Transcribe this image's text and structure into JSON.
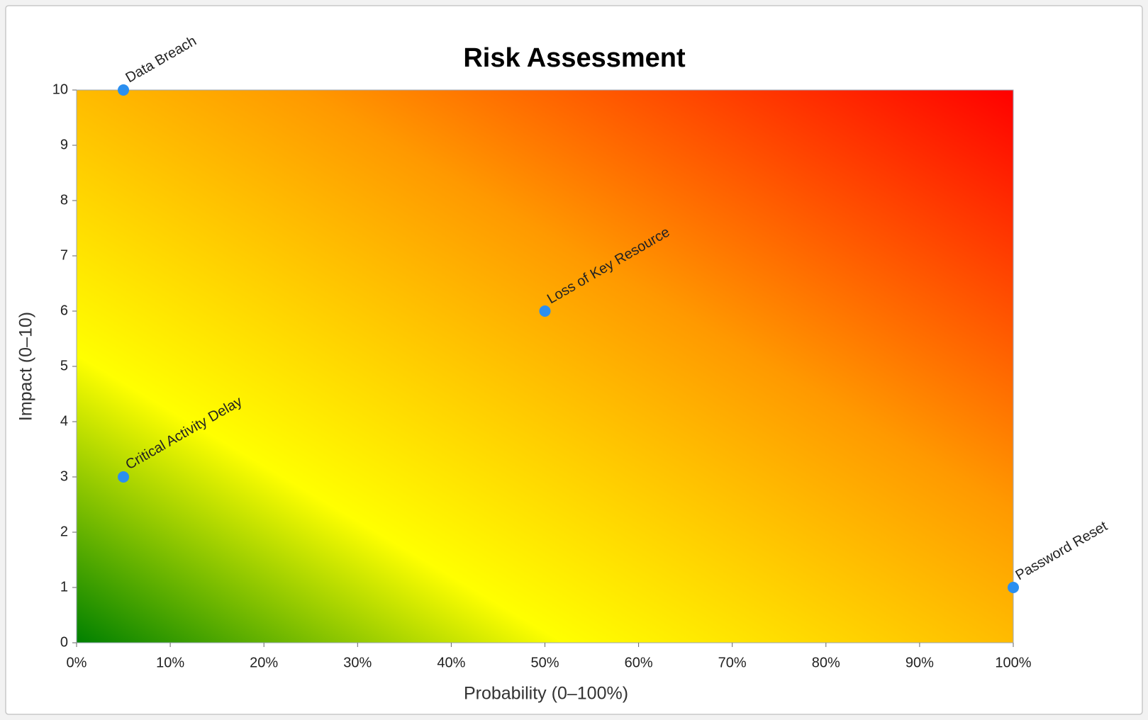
{
  "chart_data": {
    "type": "scatter",
    "title": "Risk Assessment",
    "x_label": "Probability (0–100%)",
    "y_label": "Impact (0–10)",
    "point_labels": [
      "Data Breach",
      "Critical Activity Delay",
      "Loss of Key Resource",
      "Password Reset"
    ],
    "x": [
      5,
      5,
      50,
      100
    ],
    "values": [
      10,
      3,
      6,
      1
    ],
    "color": "#2b8ff0",
    "xlim": [
      0,
      100
    ],
    "xticks": [
      {
        "value": 0,
        "label": "0%"
      },
      {
        "value": 10,
        "label": "10%"
      },
      {
        "value": 20,
        "label": "20%"
      },
      {
        "value": 30,
        "label": "30%"
      },
      {
        "value": 40,
        "label": "40%"
      },
      {
        "value": 50,
        "label": "50%"
      },
      {
        "value": 60,
        "label": "60%"
      },
      {
        "value": 70,
        "label": "70%"
      },
      {
        "value": 80,
        "label": "80%"
      },
      {
        "value": 90,
        "label": "90%"
      },
      {
        "value": 100,
        "label": "100%"
      }
    ],
    "ylim": [
      0,
      10
    ],
    "yticks": [
      0,
      1,
      2,
      3,
      4,
      5,
      6,
      7,
      8,
      9,
      10
    ],
    "background_gradient": [
      "#008000",
      "#ffff00",
      "#ff9900",
      "#ff0000"
    ]
  }
}
